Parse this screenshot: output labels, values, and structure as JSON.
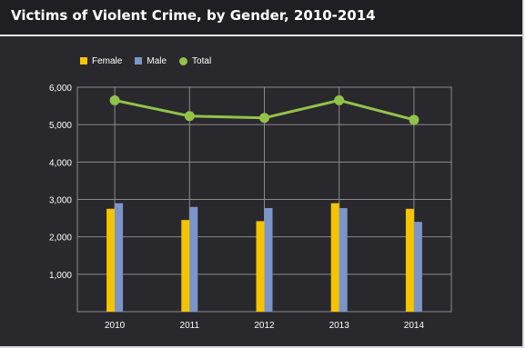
{
  "chart_data": {
    "type": "bar",
    "title": "Victims of Violent Crime, by Gender, 2010-2014",
    "xlabel": "",
    "ylabel": "",
    "categories": [
      "2010",
      "2011",
      "2012",
      "2013",
      "2014"
    ],
    "ylim": [
      0,
      6000
    ],
    "yticks": [
      0,
      1000,
      2000,
      3000,
      4000,
      5000,
      6000
    ],
    "ytick_labels": [
      "",
      "1,000",
      "2,000",
      "3,000",
      "4,000",
      "5,000",
      "6,000"
    ],
    "grid": true,
    "legend_position": "top-left",
    "series": [
      {
        "name": "Female",
        "type": "bar",
        "color": "#f5c400",
        "values": [
          2750,
          2450,
          2420,
          2900,
          2750
        ]
      },
      {
        "name": "Male",
        "type": "bar",
        "color": "#7b95c8",
        "values": [
          2900,
          2800,
          2770,
          2770,
          2400
        ]
      },
      {
        "name": "Total",
        "type": "line",
        "color": "#92c24a",
        "values": [
          5650,
          5230,
          5180,
          5650,
          5130
        ]
      }
    ]
  }
}
